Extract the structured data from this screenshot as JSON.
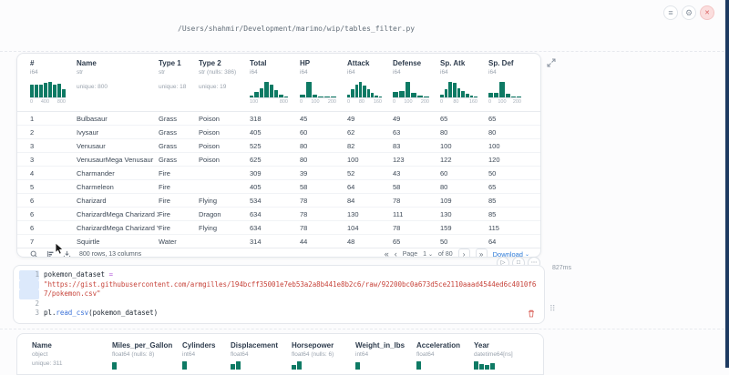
{
  "window": {
    "file_path": "/Users/shahmir/Development/marimo/wip/tables_filter.py"
  },
  "icons": {
    "menu": "≡",
    "settings": "⚙",
    "close": "✕",
    "play": "▷",
    "stop": "□",
    "more": "⋯",
    "chevron_down": "⌄",
    "first": "«",
    "prev": "‹",
    "next": "›",
    "last": "»",
    "drag": "⠿"
  },
  "colors": {
    "accent_teal": "#0e7a64",
    "link_blue": "#2f7cd8",
    "scrollbar_navy": "#1d3a61",
    "string_red": "#c7443b"
  },
  "cell": {
    "runtime": "827ms"
  },
  "table": {
    "columns": [
      {
        "name": "#",
        "dtype": "i64",
        "hist": {
          "bars": [
            0.8,
            0.85,
            0.82,
            0.95,
            1.0,
            0.85,
            0.88,
            0.5
          ],
          "labels": [
            "0",
            "400",
            "800"
          ]
        }
      },
      {
        "name": "Name",
        "dtype": "str",
        "unique": "unique: 800"
      },
      {
        "name": "Type 1",
        "dtype": "str",
        "unique": "unique: 18"
      },
      {
        "name": "Type 2",
        "dtype": "str (nulls: 386)",
        "unique": "unique: 19"
      },
      {
        "name": "Total",
        "dtype": "i64",
        "hist": {
          "bars": [
            0.1,
            0.35,
            0.6,
            1.0,
            0.8,
            0.45,
            0.15,
            0.07
          ],
          "labels": [
            "100",
            "800"
          ]
        }
      },
      {
        "name": "HP",
        "dtype": "i64",
        "hist": {
          "bars": [
            0.2,
            1.0,
            0.15,
            0.05,
            0.03,
            0.02
          ],
          "labels": [
            "0",
            "100",
            "200"
          ]
        }
      },
      {
        "name": "Attack",
        "dtype": "i64",
        "hist": {
          "bars": [
            0.15,
            0.5,
            0.85,
            1.0,
            0.75,
            0.5,
            0.28,
            0.12,
            0.05
          ],
          "labels": [
            "0",
            "80",
            "160"
          ]
        }
      },
      {
        "name": "Defense",
        "dtype": "i64",
        "hist": {
          "bars": [
            0.35,
            0.4,
            1.0,
            0.28,
            0.1,
            0.04
          ],
          "labels": [
            "0",
            "100",
            "200"
          ]
        }
      },
      {
        "name": "Sp. Atk",
        "dtype": "i64",
        "hist": {
          "bars": [
            0.2,
            0.55,
            1.0,
            0.95,
            0.6,
            0.4,
            0.22,
            0.1,
            0.04
          ],
          "labels": [
            "0",
            "80",
            "160"
          ]
        }
      },
      {
        "name": "Sp. Def",
        "dtype": "i64",
        "hist": {
          "bars": [
            0.3,
            0.32,
            1.0,
            0.25,
            0.08,
            0.03
          ],
          "labels": [
            "0",
            "100",
            "200"
          ]
        }
      }
    ],
    "rows": [
      [
        "1",
        "Bulbasaur",
        "Grass",
        "Poison",
        "318",
        "45",
        "49",
        "49",
        "65",
        "65"
      ],
      [
        "2",
        "Ivysaur",
        "Grass",
        "Poison",
        "405",
        "60",
        "62",
        "63",
        "80",
        "80"
      ],
      [
        "3",
        "Venusaur",
        "Grass",
        "Poison",
        "525",
        "80",
        "82",
        "83",
        "100",
        "100"
      ],
      [
        "3",
        "VenusaurMega Venusaur",
        "Grass",
        "Poison",
        "625",
        "80",
        "100",
        "123",
        "122",
        "120"
      ],
      [
        "4",
        "Charmander",
        "Fire",
        "",
        "309",
        "39",
        "52",
        "43",
        "60",
        "50"
      ],
      [
        "5",
        "Charmeleon",
        "Fire",
        "",
        "405",
        "58",
        "64",
        "58",
        "80",
        "65"
      ],
      [
        "6",
        "Charizard",
        "Fire",
        "Flying",
        "534",
        "78",
        "84",
        "78",
        "109",
        "85"
      ],
      [
        "6",
        "CharizardMega Charizard X",
        "Fire",
        "Dragon",
        "634",
        "78",
        "130",
        "111",
        "130",
        "85"
      ],
      [
        "6",
        "CharizardMega Charizard Y",
        "Fire",
        "Flying",
        "634",
        "78",
        "104",
        "78",
        "159",
        "115"
      ],
      [
        "7",
        "Squirtle",
        "Water",
        "",
        "314",
        "44",
        "48",
        "65",
        "50",
        "64"
      ]
    ],
    "footer": {
      "summary": "800 rows, 13 columns",
      "page_label": "Page",
      "page_value": "1",
      "of_label": "of 80",
      "download_label": "Download"
    }
  },
  "code": {
    "lines": [
      {
        "num": "1",
        "gutter_hl": true,
        "segments": [
          {
            "t": "pokemon_dataset ",
            "c": "plain"
          },
          {
            "t": "=",
            "c": "op"
          }
        ]
      },
      {
        "num": "",
        "gutter_hl": true,
        "segments": [
          {
            "t": "\"https://gist.githubusercontent.com/armgilles/194bcff35001e7eb53a2a8b441e8b2c6/raw/92200bc0a673d5ce2110aaad4544ed6c4010f68",
            "c": "str"
          }
        ]
      },
      {
        "num": "",
        "gutter_hl": true,
        "segments": [
          {
            "t": "7/pokemon.csv\"",
            "c": "str"
          }
        ]
      },
      {
        "num": "2",
        "gutter_hl": false,
        "segments": []
      },
      {
        "num": "3",
        "gutter_hl": false,
        "segments": [
          {
            "t": "pl",
            "c": "plain"
          },
          {
            "t": ".",
            "c": "plain"
          },
          {
            "t": "read_csv",
            "c": "fn"
          },
          {
            "t": "(pokemon_dataset)",
            "c": "plain"
          }
        ]
      }
    ]
  },
  "table2": {
    "columns": [
      {
        "name": "Name",
        "dtype": "object",
        "unique": "unique: 311"
      },
      {
        "name": "Miles_per_Gallon",
        "dtype": "float64 (nulls: 8)",
        "bars": [
          8
        ]
      },
      {
        "name": "Cylinders",
        "dtype": "int64",
        "bars": [
          9
        ]
      },
      {
        "name": "Displacement",
        "dtype": "float64",
        "bars": [
          6,
          9
        ]
      },
      {
        "name": "Horsepower",
        "dtype": "float64 (nulls: 6)",
        "bars": [
          5,
          9
        ]
      },
      {
        "name": "Weight_in_lbs",
        "dtype": "int64",
        "bars": [
          8
        ]
      },
      {
        "name": "Acceleration",
        "dtype": "float64",
        "bars": [
          9
        ]
      },
      {
        "name": "Year",
        "dtype": "datetime64[ns]",
        "bars": [
          9,
          6,
          5,
          7
        ]
      }
    ]
  }
}
